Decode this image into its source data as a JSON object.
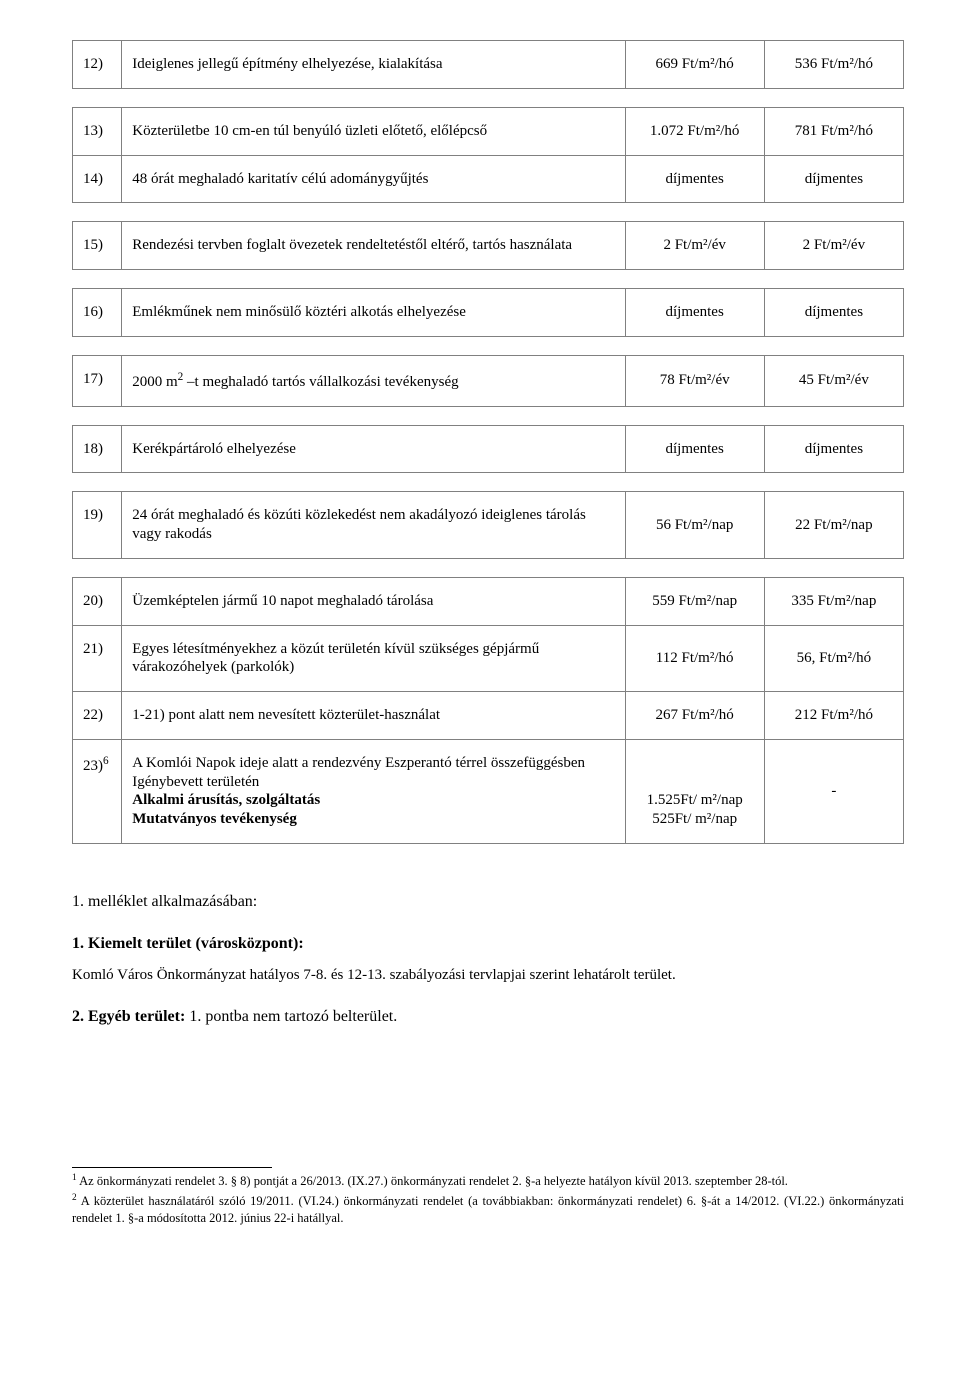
{
  "rows": [
    {
      "num": "12)",
      "desc": "Ideiglenes jellegű építmény elhelyezése, kialakítása",
      "v1": "669 Ft/m²/hó",
      "v2": "536 Ft/m²/hó"
    },
    {
      "num": "13)",
      "desc": "Közterületbe 10 cm-en túl benyúló üzleti előtető, előlépcső",
      "v1": "1.072 Ft/m²/hó",
      "v2": "781 Ft/m²/hó"
    },
    {
      "num": "14)",
      "desc": "48 órát meghaladó karitatív célú adománygyűjtés",
      "v1": "díjmentes",
      "v2": "díjmentes"
    },
    {
      "num": "15)",
      "desc": "Rendezési tervben foglalt övezetek rendeltetéstől eltérő, tartós használata",
      "v1": "2 Ft/m²/év",
      "v2": "2 Ft/m²/év"
    },
    {
      "num": "16)",
      "desc": "Emlékműnek nem minősülő köztéri alkotás elhelyezése",
      "v1": "díjmentes",
      "v2": "díjmentes"
    },
    {
      "num": "17)",
      "desc_html": "2000 m<sup>2</sup> –t meghaladó tartós vállalkozási tevékenység",
      "v1": "78 Ft/m²/év",
      "v2": "45 Ft/m²/év"
    },
    {
      "num": "18)",
      "desc": "Kerékpártároló elhelyezése",
      "v1": "díjmentes",
      "v2": "díjmentes"
    },
    {
      "num": "19)",
      "desc": "24 órát meghaladó és közúti közlekedést nem akadályozó ideiglenes tárolás vagy rakodás",
      "v1": "56 Ft/m²/nap",
      "v2": "22 Ft/m²/nap"
    },
    {
      "num": "20)",
      "desc": "Üzemképtelen jármű 10 napot meghaladó tárolása",
      "v1": "559 Ft/m²/nap",
      "v2": "335 Ft/m²/nap"
    },
    {
      "num": "21)",
      "desc": "Egyes létesítményekhez a közút területén kívül szükséges gépjármű várakozóhelyek (parkolók)",
      "v1": "112 Ft/m²/hó",
      "v2": "56, Ft/m²/hó"
    },
    {
      "num": "22)",
      "desc": "1-21) pont alatt nem nevesített közterület-használat",
      "v1": "267 Ft/m²/hó",
      "v2": "212 Ft/m²/hó"
    },
    {
      "num_html": "23)<sup>6</sup>",
      "desc_lines": [
        {
          "text": "A Komlói Napok ideje alatt a rendezvény Eszperantó térrel összefüggésben"
        },
        {
          "text": "Igénybevett területén"
        },
        {
          "text": "Alkalmi árusítás, szolgáltatás",
          "bold": true
        },
        {
          "text": "Mutatványos tevékenység",
          "bold": true
        }
      ],
      "v1_lines": [
        "",
        "",
        "1.525Ft/ m²/nap",
        "525Ft/ m²/nap"
      ],
      "v2": "-"
    }
  ],
  "spacer_after": [
    0,
    2,
    3,
    4,
    5,
    6,
    7
  ],
  "after": {
    "l1": "1. melléklet alkalmazásában:",
    "l2": "1. Kiemelt terület (városközpont):",
    "l3": "Komló Város Önkormányzat hatályos 7-8. és 12-13. szabályozási tervlapjai szerint lehatárolt terület.",
    "l4a": "2. Egyéb terület:",
    "l4b": " 1. pontba nem tartozó belterület."
  },
  "footnotes": [
    {
      "sup": "1",
      "text": " Az önkormányzati rendelet 3. § 8) pontját a 26/2013. (IX.27.) önkormányzati rendelet 2. §-a helyezte hatályon kívül 2013. szeptember 28-tól."
    },
    {
      "sup": "2",
      "text": " A közterület használatáról szóló 19/2011. (VI.24.) önkormányzati rendelet (a továbbiakban: önkormányzati rendelet) 6. §-át a 14/2012. (VI.22.) önkormányzati rendelet 1. §-a módosította 2012. június 22-i hatállyal."
    }
  ]
}
